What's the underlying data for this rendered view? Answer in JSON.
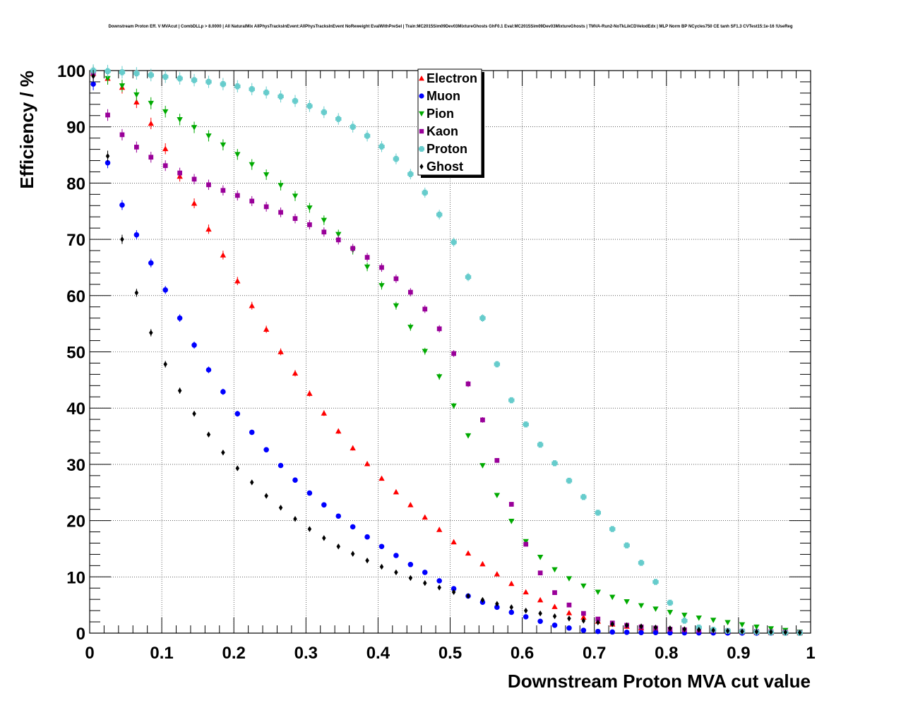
{
  "chart_data": {
    "type": "scatter",
    "title": "Downstream Proton Eff. V MVAcut | CombDLLp > 8.0000 | All NaturalMix AllPhysTracksInEvent:AllPhysTracksInEvent NoReweight EvalWithPreSel | Train:MC2015Sim09Dev03MixtureGhosts GhF0.1 Eval:MC2015Sim09Dev03MixtureGhosts | TMVA-Run2-NoTkLikCDVelodEdx | MLP Norm BP NCycles750 CE tanh SF1.3 CVTest15:1e-16 !UseReg",
    "xlabel": "Downstream Proton MVA cut value",
    "ylabel": "Efficiency / %",
    "xlim": [
      0,
      1
    ],
    "ylim": [
      0,
      100
    ],
    "x_ticks": [
      "0",
      "0.1",
      "0.2",
      "0.3",
      "0.4",
      "0.5",
      "0.6",
      "0.7",
      "0.8",
      "0.9",
      "1"
    ],
    "y_ticks": [
      "0",
      "10",
      "20",
      "30",
      "40",
      "50",
      "60",
      "70",
      "80",
      "90",
      "100"
    ],
    "grid": true,
    "legend_position": "top-center",
    "series": [
      {
        "name": "Electron",
        "color": "#ff0000",
        "marker": "triangle-up",
        "x": [
          0.005,
          0.025,
          0.045,
          0.065,
          0.085,
          0.105,
          0.125,
          0.145,
          0.165,
          0.185,
          0.205,
          0.225,
          0.245,
          0.265,
          0.285,
          0.305,
          0.325,
          0.345,
          0.365,
          0.385,
          0.405,
          0.425,
          0.445,
          0.465,
          0.485,
          0.505,
          0.525,
          0.545,
          0.565,
          0.585,
          0.605,
          0.625,
          0.645,
          0.665,
          0.685,
          0.705,
          0.725,
          0.745,
          0.765,
          0.785,
          0.805,
          0.825,
          0.845,
          0.865,
          0.885,
          0.905,
          0.925,
          0.945,
          0.965,
          0.985
        ],
        "y": [
          99.5,
          98.6,
          97.0,
          94.4,
          90.6,
          86.1,
          81.2,
          76.4,
          71.8,
          67.2,
          62.6,
          58.2,
          54.0,
          50.0,
          46.2,
          42.6,
          39.1,
          35.9,
          32.9,
          30.1,
          27.5,
          25.1,
          22.8,
          20.6,
          18.4,
          16.2,
          14.2,
          12.3,
          10.5,
          8.8,
          7.3,
          5.9,
          4.7,
          3.6,
          2.8,
          2.1,
          1.6,
          1.2,
          0.9,
          0.7,
          0.5,
          0.4,
          0.3,
          0.25,
          0.2,
          0.15,
          0.1,
          0.08,
          0.05,
          0.03
        ]
      },
      {
        "name": "Muon",
        "color": "#0000ff",
        "marker": "circle",
        "x": [
          0.005,
          0.025,
          0.045,
          0.065,
          0.085,
          0.105,
          0.125,
          0.145,
          0.165,
          0.185,
          0.205,
          0.225,
          0.245,
          0.265,
          0.285,
          0.305,
          0.325,
          0.345,
          0.365,
          0.385,
          0.405,
          0.425,
          0.445,
          0.465,
          0.485,
          0.505,
          0.525,
          0.545,
          0.565,
          0.585,
          0.605,
          0.625,
          0.645,
          0.665,
          0.685,
          0.705,
          0.725,
          0.745,
          0.765,
          0.785,
          0.805,
          0.825,
          0.845,
          0.865,
          0.885,
          0.905,
          0.925,
          0.945,
          0.965,
          0.985
        ],
        "y": [
          97.6,
          83.6,
          76.1,
          70.8,
          65.8,
          61.0,
          56.0,
          51.2,
          46.8,
          42.9,
          39.0,
          35.7,
          32.6,
          29.8,
          27.2,
          24.9,
          22.8,
          20.8,
          18.9,
          17.1,
          15.4,
          13.8,
          12.2,
          10.8,
          9.3,
          7.9,
          6.6,
          5.5,
          4.6,
          3.7,
          2.9,
          2.1,
          1.4,
          0.9,
          0.5,
          0.3,
          0.2,
          0.15,
          0.1,
          0.1,
          0.05,
          0.05,
          0.03,
          0.03,
          0.02,
          0.02,
          0.01,
          0.01,
          0.01,
          0.0
        ]
      },
      {
        "name": "Pion",
        "color": "#00aa00",
        "marker": "triangle-down",
        "x": [
          0.005,
          0.025,
          0.045,
          0.065,
          0.085,
          0.105,
          0.125,
          0.145,
          0.165,
          0.185,
          0.205,
          0.225,
          0.245,
          0.265,
          0.285,
          0.305,
          0.325,
          0.345,
          0.365,
          0.385,
          0.405,
          0.425,
          0.445,
          0.465,
          0.485,
          0.505,
          0.525,
          0.545,
          0.565,
          0.585,
          0.605,
          0.625,
          0.645,
          0.665,
          0.685,
          0.705,
          0.725,
          0.745,
          0.765,
          0.785,
          0.805,
          0.825,
          0.845,
          0.865,
          0.885,
          0.905,
          0.925,
          0.945,
          0.965,
          0.985
        ],
        "y": [
          99.8,
          98.6,
          97.3,
          95.7,
          94.2,
          92.7,
          91.3,
          89.9,
          88.4,
          86.8,
          85.1,
          83.3,
          81.5,
          79.6,
          77.7,
          75.6,
          73.4,
          70.9,
          68.1,
          65.1,
          61.8,
          58.2,
          54.4,
          50.1,
          45.6,
          40.4,
          35.1,
          29.8,
          24.5,
          19.9,
          16.3,
          13.5,
          11.3,
          9.7,
          8.4,
          7.3,
          6.4,
          5.6,
          4.9,
          4.3,
          3.7,
          3.2,
          2.7,
          2.3,
          1.9,
          1.5,
          1.1,
          0.8,
          0.5,
          0.2
        ]
      },
      {
        "name": "Kaon",
        "color": "#990099",
        "marker": "square",
        "x": [
          0.005,
          0.025,
          0.045,
          0.065,
          0.085,
          0.105,
          0.125,
          0.145,
          0.165,
          0.185,
          0.205,
          0.225,
          0.245,
          0.265,
          0.285,
          0.305,
          0.325,
          0.345,
          0.365,
          0.385,
          0.405,
          0.425,
          0.445,
          0.465,
          0.485,
          0.505,
          0.525,
          0.545,
          0.565,
          0.585,
          0.605,
          0.625,
          0.645,
          0.665,
          0.685,
          0.705,
          0.725,
          0.745,
          0.765,
          0.785,
          0.805,
          0.825,
          0.845,
          0.865,
          0.885,
          0.905,
          0.925,
          0.945,
          0.965,
          0.985
        ],
        "y": [
          99.6,
          92.1,
          88.6,
          86.4,
          84.6,
          83.1,
          81.8,
          80.7,
          79.7,
          78.7,
          77.8,
          76.8,
          75.8,
          74.8,
          73.7,
          72.6,
          71.3,
          69.9,
          68.4,
          66.8,
          65.0,
          63.0,
          60.6,
          57.6,
          54.1,
          49.7,
          44.3,
          37.9,
          30.7,
          22.9,
          15.8,
          10.7,
          7.2,
          5.0,
          3.5,
          2.5,
          1.8,
          1.4,
          1.1,
          0.9,
          0.7,
          0.6,
          0.5,
          0.45,
          0.4,
          0.35,
          0.3,
          0.25,
          0.2,
          0.15
        ]
      },
      {
        "name": "Proton",
        "color": "#66cccc",
        "marker": "cross",
        "x": [
          0.005,
          0.025,
          0.045,
          0.065,
          0.085,
          0.105,
          0.125,
          0.145,
          0.165,
          0.185,
          0.205,
          0.225,
          0.245,
          0.265,
          0.285,
          0.305,
          0.325,
          0.345,
          0.365,
          0.385,
          0.405,
          0.425,
          0.445,
          0.465,
          0.485,
          0.505,
          0.525,
          0.545,
          0.565,
          0.585,
          0.605,
          0.625,
          0.645,
          0.665,
          0.685,
          0.705,
          0.725,
          0.745,
          0.765,
          0.785,
          0.805,
          0.825,
          0.845,
          0.865,
          0.885,
          0.905,
          0.925,
          0.945,
          0.965,
          0.985
        ],
        "y": [
          100.0,
          99.9,
          99.7,
          99.5,
          99.2,
          98.9,
          98.6,
          98.3,
          98.0,
          97.6,
          97.2,
          96.7,
          96.1,
          95.4,
          94.6,
          93.7,
          92.6,
          91.4,
          90.0,
          88.4,
          86.5,
          84.3,
          81.6,
          78.3,
          74.4,
          69.5,
          63.3,
          56.0,
          47.8,
          41.4,
          37.1,
          33.5,
          30.2,
          27.1,
          24.2,
          21.4,
          18.5,
          15.6,
          12.5,
          9.1,
          5.4,
          2.2,
          1.0,
          0.6,
          0.4,
          0.3,
          0.2,
          0.1,
          0.05,
          0.02
        ]
      },
      {
        "name": "Ghost",
        "color": "#000000",
        "marker": "diamond",
        "x": [
          0.005,
          0.025,
          0.045,
          0.065,
          0.085,
          0.105,
          0.125,
          0.145,
          0.165,
          0.185,
          0.205,
          0.225,
          0.245,
          0.265,
          0.285,
          0.305,
          0.325,
          0.345,
          0.365,
          0.385,
          0.405,
          0.425,
          0.445,
          0.465,
          0.485,
          0.505,
          0.525,
          0.545,
          0.565,
          0.585,
          0.605,
          0.625,
          0.645,
          0.665,
          0.685,
          0.705,
          0.725,
          0.745,
          0.765,
          0.785,
          0.805,
          0.825,
          0.845,
          0.865,
          0.885,
          0.905,
          0.925,
          0.945,
          0.965,
          0.985
        ],
        "y": [
          99.0,
          84.8,
          70.0,
          60.5,
          53.4,
          47.8,
          43.1,
          39.0,
          35.3,
          32.1,
          29.3,
          26.8,
          24.4,
          22.3,
          20.3,
          18.5,
          16.9,
          15.4,
          14.1,
          12.9,
          11.8,
          10.8,
          9.8,
          8.9,
          8.1,
          7.3,
          6.6,
          5.9,
          5.2,
          4.6,
          4.0,
          3.5,
          3.0,
          2.6,
          2.2,
          1.9,
          1.6,
          1.4,
          1.2,
          1.0,
          0.85,
          0.7,
          0.6,
          0.5,
          0.4,
          0.3,
          0.25,
          0.2,
          0.15,
          0.1
        ]
      }
    ]
  }
}
